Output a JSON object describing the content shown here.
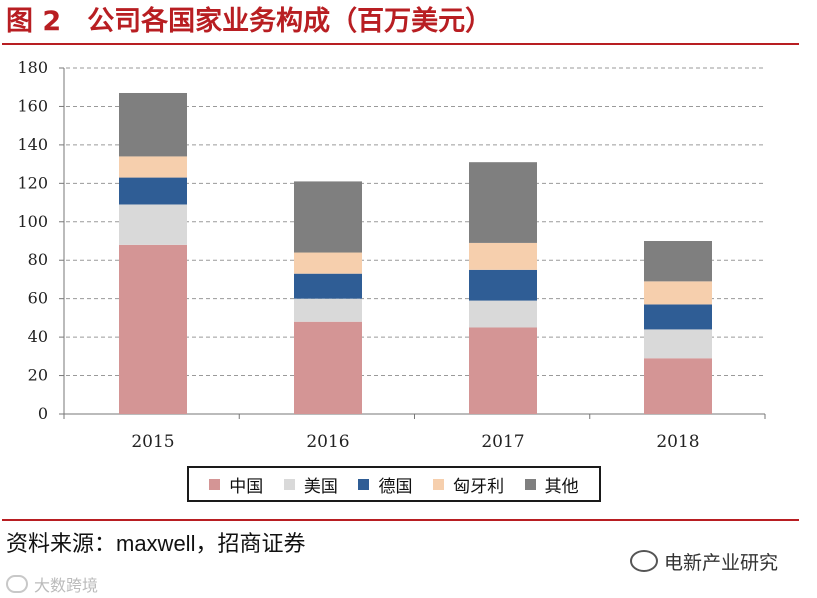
{
  "title": {
    "figure": "图 2",
    "text": "公司各国家业务构成（百万美元）"
  },
  "chart_data": {
    "type": "bar",
    "stacked": true,
    "title": "公司各国家业务构成（百万美元）",
    "categories": [
      "2015",
      "2016",
      "2017",
      "2018"
    ],
    "ylim": [
      0,
      180
    ],
    "yticks": [
      0,
      20,
      40,
      60,
      80,
      100,
      120,
      140,
      160,
      180
    ],
    "grid": true,
    "legend_position": "bottom",
    "series": [
      {
        "name": "中国",
        "color": "#d49595",
        "values": [
          88,
          48,
          45,
          29
        ]
      },
      {
        "name": "美国",
        "color": "#d9d9d9",
        "values": [
          21,
          12,
          14,
          15
        ]
      },
      {
        "name": "德国",
        "color": "#2f5d95",
        "values": [
          14,
          13,
          16,
          13
        ]
      },
      {
        "name": "匈牙利",
        "color": "#f6cfad",
        "values": [
          11,
          11,
          14,
          12
        ]
      },
      {
        "name": "其他",
        "color": "#7f7f7f",
        "values": [
          33,
          37,
          42,
          21
        ]
      }
    ]
  },
  "source": "资料来源：maxwell，招商证券",
  "watermark_right": "电新产业研究",
  "watermark_left": "大数跨境"
}
